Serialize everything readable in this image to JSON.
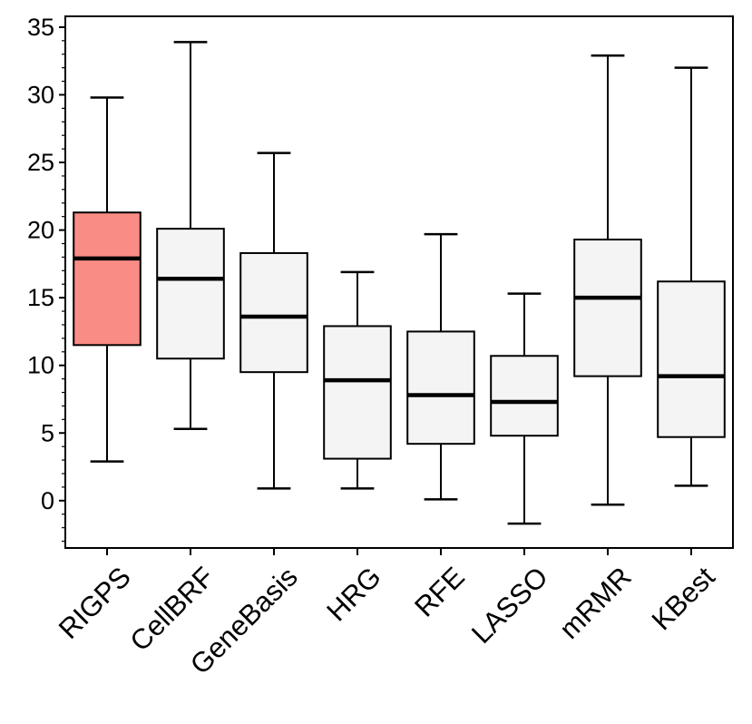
{
  "chart_data": {
    "type": "box",
    "categories": [
      "RIGPS",
      "CellBRF",
      "GeneBasis",
      "HRG",
      "RFE",
      "LASSO",
      "mRMR",
      "KBest"
    ],
    "boxes": [
      {
        "category": "RIGPS",
        "whisker_low": 2.9,
        "q1": 11.5,
        "median": 17.9,
        "q3": 21.3,
        "whisker_high": 29.8,
        "color": "#f98c84"
      },
      {
        "category": "CellBRF",
        "whisker_low": 5.3,
        "q1": 10.5,
        "median": 16.4,
        "q3": 20.1,
        "whisker_high": 33.9,
        "color": "#f4f4f4"
      },
      {
        "category": "GeneBasis",
        "whisker_low": 0.9,
        "q1": 9.5,
        "median": 13.6,
        "q3": 18.3,
        "whisker_high": 25.7,
        "color": "#f4f4f4"
      },
      {
        "category": "HRG",
        "whisker_low": 0.9,
        "q1": 3.1,
        "median": 8.9,
        "q3": 12.9,
        "whisker_high": 16.9,
        "color": "#f4f4f4"
      },
      {
        "category": "RFE",
        "whisker_low": 0.1,
        "q1": 4.2,
        "median": 7.8,
        "q3": 12.5,
        "whisker_high": 19.7,
        "color": "#f4f4f4"
      },
      {
        "category": "LASSO",
        "whisker_low": -1.7,
        "q1": 4.8,
        "median": 7.3,
        "q3": 10.7,
        "whisker_high": 15.3,
        "color": "#f4f4f4"
      },
      {
        "category": "mRMR",
        "whisker_low": -0.3,
        "q1": 9.2,
        "median": 15.0,
        "q3": 19.3,
        "whisker_high": 32.9,
        "color": "#f4f4f4"
      },
      {
        "category": "KBest",
        "whisker_low": 1.1,
        "q1": 4.7,
        "median": 9.2,
        "q3": 16.2,
        "whisker_high": 32.0,
        "color": "#f4f4f4"
      }
    ],
    "ylim": [
      -3.5,
      35.8
    ],
    "yticks": [
      "0",
      "5",
      "10",
      "15",
      "20",
      "25",
      "30",
      "35"
    ],
    "title": "",
    "xlabel": "",
    "ylabel": "",
    "grid": false
  }
}
